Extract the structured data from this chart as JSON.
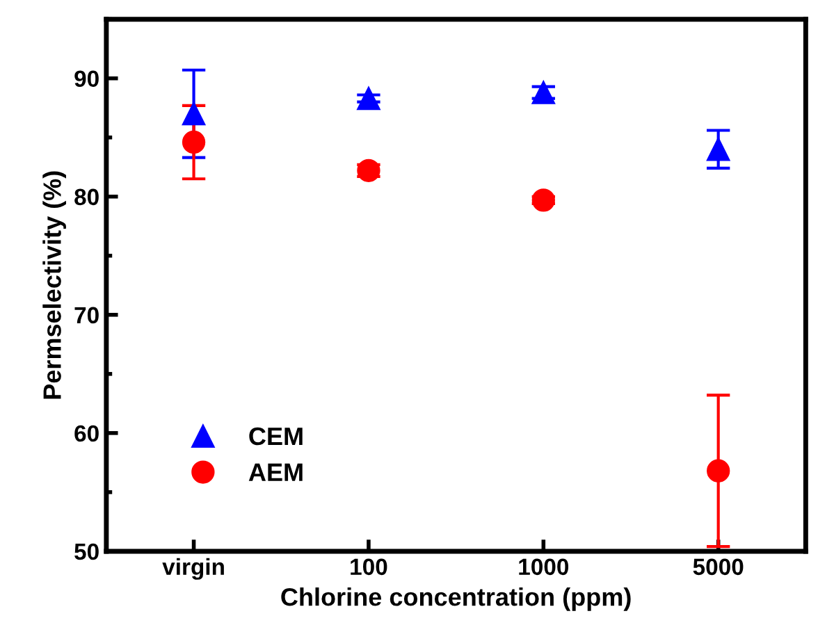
{
  "chart_data": {
    "type": "scatter",
    "xlabel": "Chlorine concentration (ppm)",
    "ylabel": "Permselectivity (%)",
    "categories": [
      "virgin",
      "100",
      "1000",
      "5000"
    ],
    "ylim": [
      50,
      95
    ],
    "yticks": [
      50,
      60,
      70,
      80,
      90
    ],
    "grid": false,
    "legend": "bottom left",
    "series": [
      {
        "name": "CEM",
        "color": "#0000ff",
        "marker": "triangle",
        "values": [
          87.0,
          88.3,
          88.8,
          84.0
        ],
        "errors": [
          3.7,
          0.3,
          0.5,
          1.6
        ]
      },
      {
        "name": "AEM",
        "color": "#ff0000",
        "marker": "circle",
        "values": [
          84.6,
          82.2,
          79.7,
          56.8
        ],
        "errors": [
          3.1,
          0.5,
          0.3,
          6.4
        ]
      }
    ]
  }
}
